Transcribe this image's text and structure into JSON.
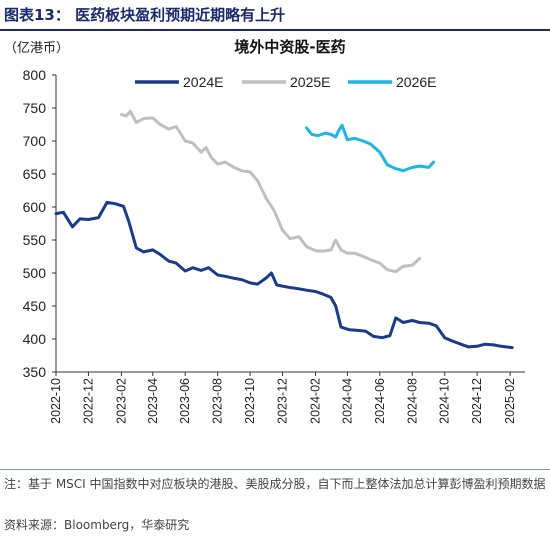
{
  "figure": {
    "title": "图表13：  医药板块盈利预期近期略有上升",
    "note": "注：基于 MSCI 中国指数中对应板块的港股、美股成分股，自下而上整体法加总计算彭博盈利预期数据",
    "source": "资料来源：Bloomberg，华泰研究"
  },
  "chart_data": {
    "type": "line",
    "title": "境外中资股-医药",
    "unit_label": "（亿港币）",
    "ylim": [
      350,
      800
    ],
    "yticks": [
      350,
      400,
      450,
      500,
      550,
      600,
      650,
      700,
      750,
      800
    ],
    "xlim": [
      "2022-10",
      "2025-03"
    ],
    "xticks": [
      "2022-10",
      "2022-12",
      "2023-02",
      "2023-04",
      "2023-06",
      "2023-08",
      "2023-10",
      "2023-12",
      "2024-02",
      "2024-04",
      "2024-06",
      "2024-08",
      "2024-10",
      "2024-12",
      "2025-02"
    ],
    "legend_position": "top-center",
    "grid": false,
    "series": [
      {
        "name": "2024E",
        "color": "#1a3a8a",
        "points": [
          [
            "2022-10",
            590
          ],
          [
            "2022-10-15",
            592
          ],
          [
            "2022-11",
            570
          ],
          [
            "2022-11-15",
            582
          ],
          [
            "2022-12",
            581
          ],
          [
            "2022-12-20",
            584
          ],
          [
            "2023-01-05",
            607
          ],
          [
            "2023-01-20",
            605
          ],
          [
            "2023-02-05",
            601
          ],
          [
            "2023-02-15",
            578
          ],
          [
            "2023-03-01",
            538
          ],
          [
            "2023-03-15",
            532
          ],
          [
            "2023-04-01",
            535
          ],
          [
            "2023-04-15",
            528
          ],
          [
            "2023-05-01",
            518
          ],
          [
            "2023-05-15",
            515
          ],
          [
            "2023-06-01",
            503
          ],
          [
            "2023-06-15",
            508
          ],
          [
            "2023-07-01",
            504
          ],
          [
            "2023-07-15",
            508
          ],
          [
            "2023-08-01",
            497
          ],
          [
            "2023-08-15",
            495
          ],
          [
            "2023-09-01",
            492
          ],
          [
            "2023-09-15",
            490
          ],
          [
            "2023-10-01",
            485
          ],
          [
            "2023-10-15",
            483
          ],
          [
            "2023-11-01",
            493
          ],
          [
            "2023-11-10",
            500
          ],
          [
            "2023-11-20",
            482
          ],
          [
            "2023-12-01",
            480
          ],
          [
            "2023-12-15",
            478
          ],
          [
            "2024-01-01",
            476
          ],
          [
            "2024-01-15",
            474
          ],
          [
            "2024-02-01",
            472
          ],
          [
            "2024-02-15",
            468
          ],
          [
            "2024-03-01",
            463
          ],
          [
            "2024-03-10",
            450
          ],
          [
            "2024-03-20",
            418
          ],
          [
            "2024-04-05",
            414
          ],
          [
            "2024-04-20",
            413
          ],
          [
            "2024-05-05",
            412
          ],
          [
            "2024-05-20",
            404
          ],
          [
            "2024-06-05",
            402
          ],
          [
            "2024-06-20",
            405
          ],
          [
            "2024-07-01",
            432
          ],
          [
            "2024-07-15",
            425
          ],
          [
            "2024-08-01",
            428
          ],
          [
            "2024-08-15",
            425
          ],
          [
            "2024-09-01",
            424
          ],
          [
            "2024-09-15",
            420
          ],
          [
            "2024-10-01",
            402
          ],
          [
            "2024-10-15",
            397
          ],
          [
            "2024-11-01",
            392
          ],
          [
            "2024-11-15",
            388
          ],
          [
            "2024-12-01",
            389
          ],
          [
            "2024-12-15",
            392
          ],
          [
            "2025-01-01",
            391
          ],
          [
            "2025-01-15",
            389
          ],
          [
            "2025-02-05",
            387
          ]
        ]
      },
      {
        "name": "2025E",
        "color": "#bfbfbf",
        "points": [
          [
            "2023-02-01",
            740
          ],
          [
            "2023-02-10",
            738
          ],
          [
            "2023-02-18",
            745
          ],
          [
            "2023-03-01",
            728
          ],
          [
            "2023-03-15",
            734
          ],
          [
            "2023-04-01",
            735
          ],
          [
            "2023-04-15",
            725
          ],
          [
            "2023-05-01",
            718
          ],
          [
            "2023-05-15",
            722
          ],
          [
            "2023-06-01",
            700
          ],
          [
            "2023-06-15",
            697
          ],
          [
            "2023-07-01",
            683
          ],
          [
            "2023-07-10",
            690
          ],
          [
            "2023-07-20",
            675
          ],
          [
            "2023-08-01",
            665
          ],
          [
            "2023-08-15",
            668
          ],
          [
            "2023-09-01",
            660
          ],
          [
            "2023-09-15",
            655
          ],
          [
            "2023-10-01",
            653
          ],
          [
            "2023-10-15",
            640
          ],
          [
            "2023-11-01",
            612
          ],
          [
            "2023-11-15",
            595
          ],
          [
            "2023-12-01",
            565
          ],
          [
            "2023-12-15",
            552
          ],
          [
            "2024-01-01",
            555
          ],
          [
            "2024-01-15",
            540
          ],
          [
            "2024-02-01",
            534
          ],
          [
            "2024-02-15",
            533
          ],
          [
            "2024-03-01",
            535
          ],
          [
            "2024-03-10",
            550
          ],
          [
            "2024-03-20",
            535
          ],
          [
            "2024-04-01",
            530
          ],
          [
            "2024-04-15",
            530
          ],
          [
            "2024-05-01",
            525
          ],
          [
            "2024-05-15",
            520
          ],
          [
            "2024-06-01",
            515
          ],
          [
            "2024-06-15",
            505
          ],
          [
            "2024-07-01",
            502
          ],
          [
            "2024-07-15",
            510
          ],
          [
            "2024-08-01",
            512
          ],
          [
            "2024-08-15",
            522
          ]
        ]
      },
      {
        "name": "2026E",
        "color": "#1eb4e6",
        "points": [
          [
            "2024-01-15",
            720
          ],
          [
            "2024-01-25",
            710
          ],
          [
            "2024-02-05",
            708
          ],
          [
            "2024-02-20",
            712
          ],
          [
            "2024-03-01",
            710
          ],
          [
            "2024-03-10",
            706
          ],
          [
            "2024-03-15",
            715
          ],
          [
            "2024-03-22",
            724
          ],
          [
            "2024-04-01",
            702
          ],
          [
            "2024-04-15",
            704
          ],
          [
            "2024-05-01",
            700
          ],
          [
            "2024-05-15",
            695
          ],
          [
            "2024-06-01",
            683
          ],
          [
            "2024-06-15",
            664
          ],
          [
            "2024-07-01",
            658
          ],
          [
            "2024-07-15",
            655
          ],
          [
            "2024-08-01",
            660
          ],
          [
            "2024-08-15",
            662
          ],
          [
            "2024-09-01",
            660
          ],
          [
            "2024-09-10",
            668
          ]
        ]
      }
    ]
  }
}
